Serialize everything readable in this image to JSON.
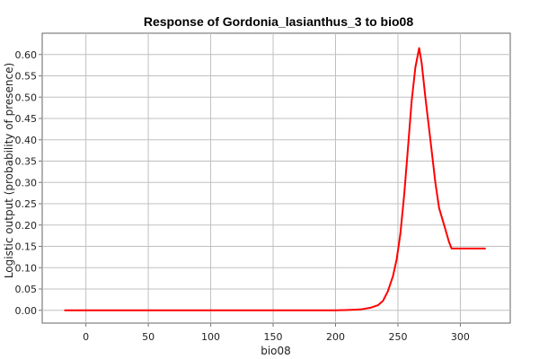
{
  "chart_data": {
    "type": "line",
    "title": "Response of Gordonia_lasianthus_3 to bio08",
    "xlabel": "bio08",
    "ylabel": "Logistic output (probability of presence)",
    "xlim": [
      -35,
      340
    ],
    "ylim": [
      -0.03,
      0.65
    ],
    "x_ticks": [
      0,
      50,
      100,
      150,
      200,
      250,
      300
    ],
    "y_ticks": [
      0.0,
      0.05,
      0.1,
      0.15,
      0.2,
      0.25,
      0.3,
      0.35,
      0.4,
      0.45,
      0.5,
      0.55,
      0.6
    ],
    "x_tick_labels": [
      "0",
      "50",
      "100",
      "150",
      "200",
      "250",
      "300"
    ],
    "y_tick_labels": [
      "0.00",
      "0.05",
      "0.10",
      "0.15",
      "0.20",
      "0.25",
      "0.30",
      "0.35",
      "0.40",
      "0.45",
      "0.50",
      "0.55",
      "0.60"
    ],
    "grid": true,
    "series": [
      {
        "color": "#ff0000",
        "x": [
          -17,
          0,
          50,
          100,
          150,
          200,
          212,
          220,
          228,
          234,
          238,
          242,
          246,
          249,
          252,
          255,
          258,
          261,
          264,
          267,
          269,
          272,
          276,
          280,
          283,
          287,
          291,
          293,
          300,
          310,
          320
        ],
        "y": [
          0.0,
          0.0,
          0.0,
          0.0,
          0.0,
          0.0,
          0.001,
          0.002,
          0.006,
          0.012,
          0.022,
          0.045,
          0.08,
          0.12,
          0.18,
          0.27,
          0.38,
          0.49,
          0.57,
          0.615,
          0.58,
          0.5,
          0.4,
          0.3,
          0.24,
          0.2,
          0.16,
          0.145,
          0.145,
          0.145,
          0.145
        ]
      }
    ]
  }
}
